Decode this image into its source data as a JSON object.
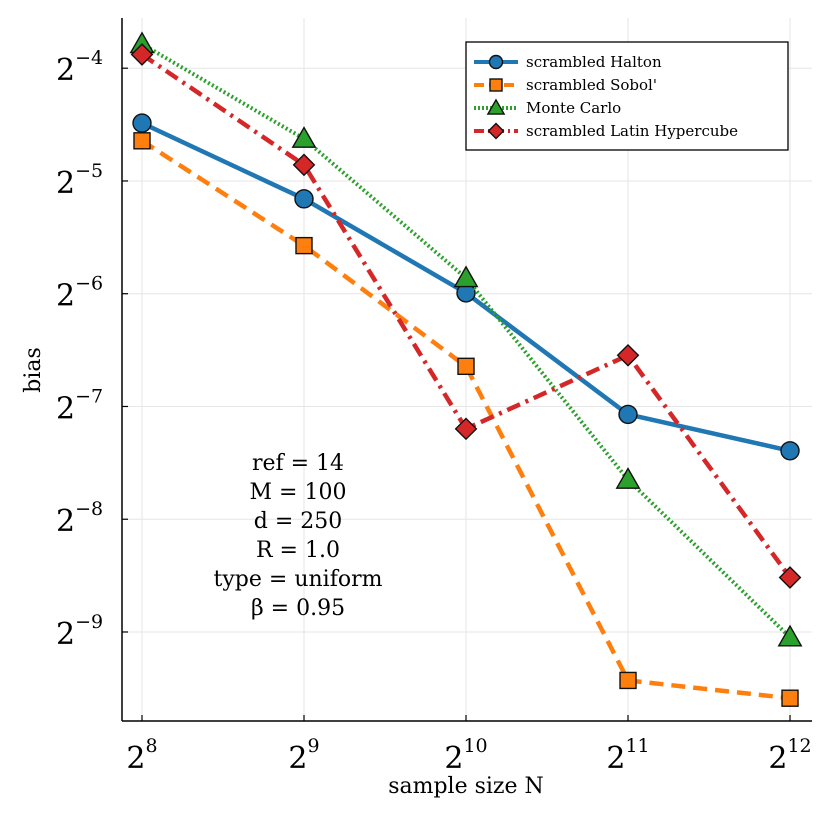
{
  "chart_data": {
    "type": "line",
    "xlabel": "sample size N",
    "ylabel": "bias",
    "x_scale": "log2",
    "y_scale": "log2",
    "x_ticks": [
      8,
      9,
      10,
      11,
      12
    ],
    "y_ticks": [
      -4,
      -5,
      -6,
      -7,
      -8,
      -9
    ],
    "xlim": [
      256,
      4500
    ],
    "ylim": [
      0.00113,
      0.0851
    ],
    "grid": true,
    "legend_position": "top-right",
    "x": [
      256,
      512,
      1024,
      2048,
      4096
    ],
    "series": [
      {
        "name": "scrambled Halton",
        "color": "#1f77b4",
        "marker": "circle",
        "dash": "solid",
        "values": [
          0.0446,
          0.028,
          0.0157,
          0.00744,
          0.00595
        ]
      },
      {
        "name": "scrambled Sobol'",
        "color": "#ff7f0e",
        "marker": "square",
        "dash": "dash",
        "values": [
          0.04,
          0.021,
          0.01,
          0.00145,
          0.0013
        ]
      },
      {
        "name": "Monte Carlo",
        "color": "#2ca02c",
        "marker": "triangle",
        "dash": "dot",
        "values": [
          0.0725,
          0.0405,
          0.0172,
          0.00498,
          0.00189
        ]
      },
      {
        "name": "scrambled Latin Hypercube",
        "color": "#d62728",
        "marker": "diamond",
        "dash": "dashdot",
        "values": [
          0.068,
          0.0345,
          0.00681,
          0.0107,
          0.00273
        ]
      }
    ],
    "annotation_lines": [
      "ref = 14",
      "M = 100",
      "d = 250",
      "R = 1.0",
      "type = uniform",
      "β = 0.95"
    ]
  }
}
